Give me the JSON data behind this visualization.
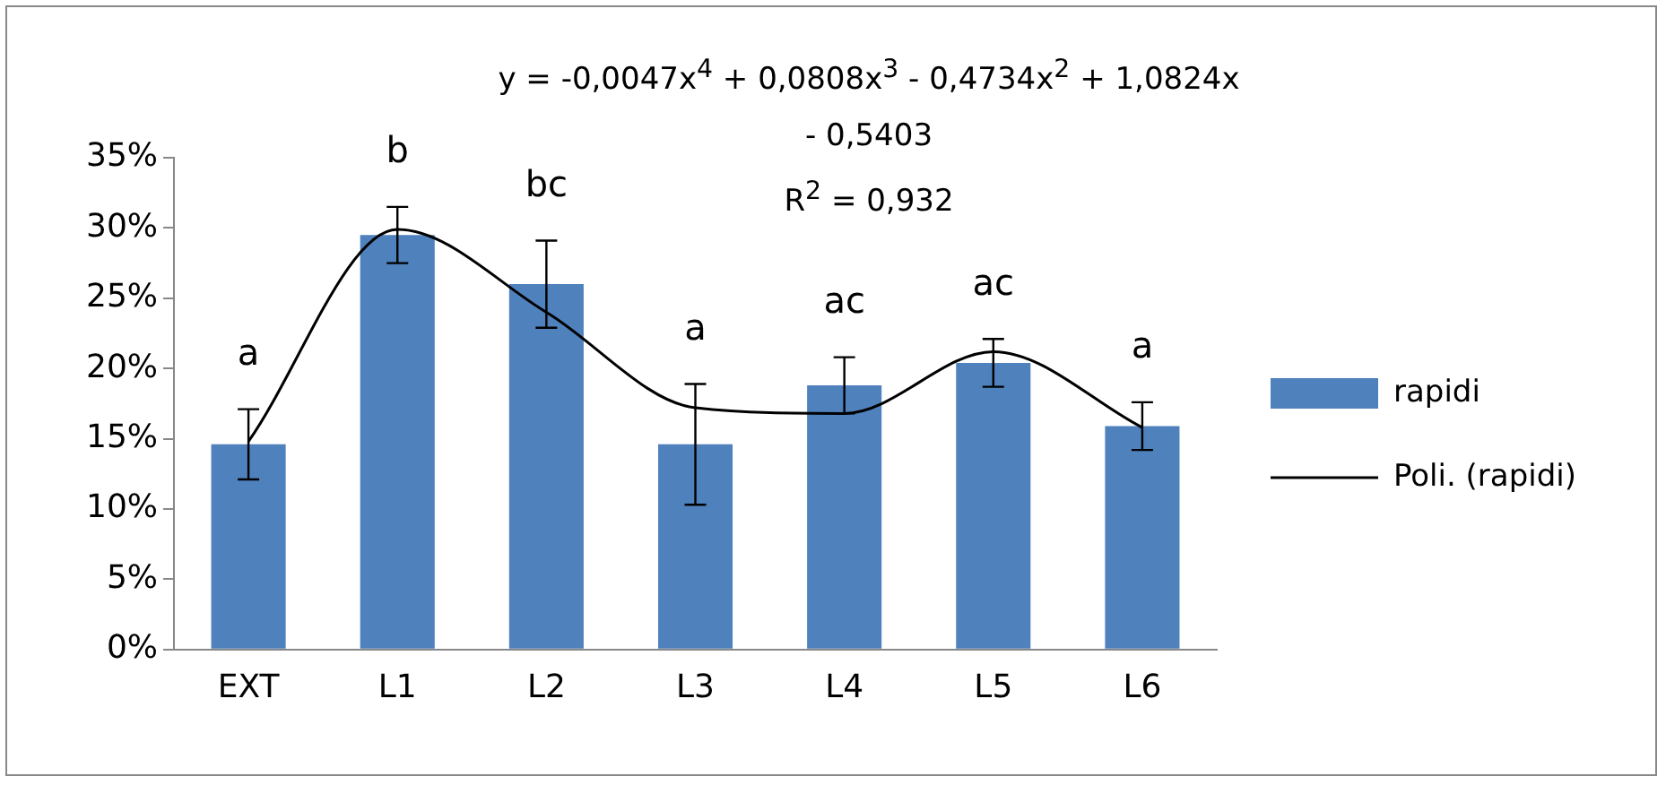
{
  "chart_data": {
    "type": "bar",
    "categories": [
      "EXT",
      "L1",
      "L2",
      "L3",
      "L4",
      "L5",
      "L6"
    ],
    "series": [
      {
        "name": "rapidi",
        "type": "bar",
        "color": "#4f81bd",
        "values": [
          14.6,
          29.5,
          26.0,
          14.6,
          18.8,
          20.4,
          15.9
        ],
        "errors": [
          2.5,
          2.0,
          3.1,
          4.3,
          2.0,
          1.7,
          1.7
        ]
      },
      {
        "name": "Poli. (rapidi)",
        "type": "line",
        "color": "#000000",
        "values": [
          14.8,
          29.9,
          24.0,
          17.2,
          16.8,
          21.2,
          15.8
        ]
      }
    ],
    "ylim": [
      0,
      35
    ],
    "yticks": [
      {
        "value": 0,
        "label": "0%"
      },
      {
        "value": 5,
        "label": "5%"
      },
      {
        "value": 10,
        "label": "10%"
      },
      {
        "value": 15,
        "label": "15%"
      },
      {
        "value": 20,
        "label": "20%"
      },
      {
        "value": 25,
        "label": "25%"
      },
      {
        "value": 30,
        "label": "30%"
      },
      {
        "value": 35,
        "label": "35%"
      }
    ],
    "grid": false,
    "legend": "right",
    "marker": "none",
    "annotations": [
      "y = -0,0047x$^{4}$ + 0,0808x$^{3}$ - 0,4734x$^{2}$ + 1,0824x - 0,5403",
      "R$^{2}$ = 0,932",
      "a",
      "b",
      "bc",
      "a",
      "ac",
      "ac",
      "a"
    ]
  }
}
